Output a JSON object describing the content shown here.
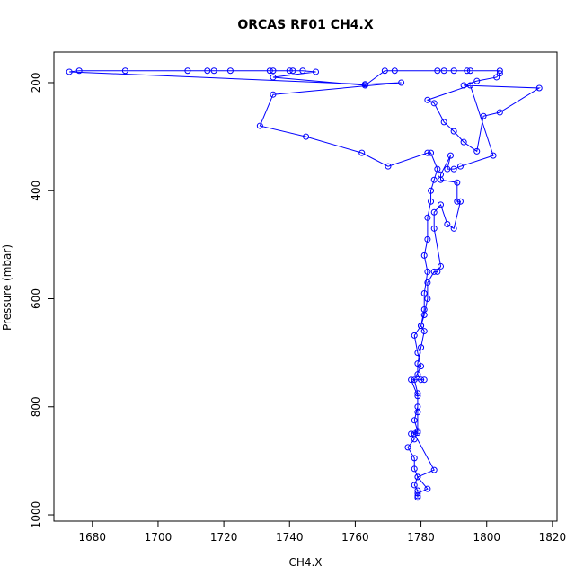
{
  "chart_data": {
    "type": "line",
    "title": "ORCAS RF01 CH4.X",
    "x_label": "CH4.X",
    "y_label": "Pressure (mbar)",
    "color": "#0000ff",
    "markers": "open-circle",
    "grid": false,
    "y_reversed": true,
    "xlim": [
      1668.3,
      1821.4
    ],
    "ylim": [
      1011.6,
      143.5
    ],
    "xticks": [
      1680,
      1700,
      1720,
      1740,
      1760,
      1780,
      1800,
      1820
    ],
    "yticks": [
      200,
      400,
      600,
      800,
      1000
    ],
    "x": [
      1779,
      1779,
      1778,
      1779,
      1778,
      1778,
      1776,
      1778,
      1777,
      1779,
      1778,
      1779,
      1779,
      1778,
      1780,
      1779,
      1778,
      1780,
      1781,
      1781,
      1782,
      1781,
      1782,
      1782,
      1783,
      1783,
      1784,
      1785,
      1783,
      1782,
      1770,
      1762,
      1745,
      1731,
      1735,
      1774,
      1763,
      1673,
      1676,
      1690,
      1709,
      1715,
      1717,
      1722,
      1734,
      1735,
      1740,
      1741,
      1744,
      1748,
      1735,
      1763,
      1769,
      1772,
      1785,
      1787,
      1790,
      1794,
      1795,
      1804,
      1804,
      1803,
      1797,
      1793,
      1816,
      1804,
      1799,
      1797,
      1793,
      1790,
      1787,
      1784,
      1782,
      1795,
      1802,
      1792,
      1790,
      1788,
      1789,
      1786,
      1786,
      1791,
      1791,
      1792,
      1790,
      1788,
      1786,
      1784,
      1784,
      1786,
      1785,
      1784,
      1782,
      1782,
      1781,
      1780,
      1781,
      1780,
      1779,
      1779,
      1780,
      1781,
      1777,
      1779,
      1779,
      1779,
      1778,
      1784,
      1779,
      1782,
      1779,
      1779
    ],
    "values": [
      965,
      955,
      945,
      930,
      915,
      895,
      875,
      860,
      850,
      845,
      825,
      800,
      775,
      750,
      725,
      700,
      668,
      650,
      620,
      590,
      550,
      520,
      490,
      450,
      420,
      400,
      380,
      360,
      330,
      330,
      355,
      330,
      300,
      280,
      222,
      200,
      203,
      180,
      178,
      178,
      178,
      178,
      178,
      178,
      178,
      178,
      178,
      178,
      178,
      180,
      190,
      205,
      178,
      178,
      178,
      178,
      178,
      178,
      178,
      178,
      183,
      190,
      197,
      205,
      210,
      255,
      262,
      327,
      310,
      290,
      273,
      238,
      232,
      205,
      335,
      355,
      360,
      360,
      335,
      370,
      380,
      385,
      420,
      420,
      470,
      462,
      426,
      440,
      470,
      540,
      550,
      550,
      570,
      600,
      630,
      650,
      660,
      690,
      720,
      740,
      750,
      750,
      750,
      780,
      810,
      848,
      850,
      917,
      930,
      952,
      960,
      968
    ]
  }
}
